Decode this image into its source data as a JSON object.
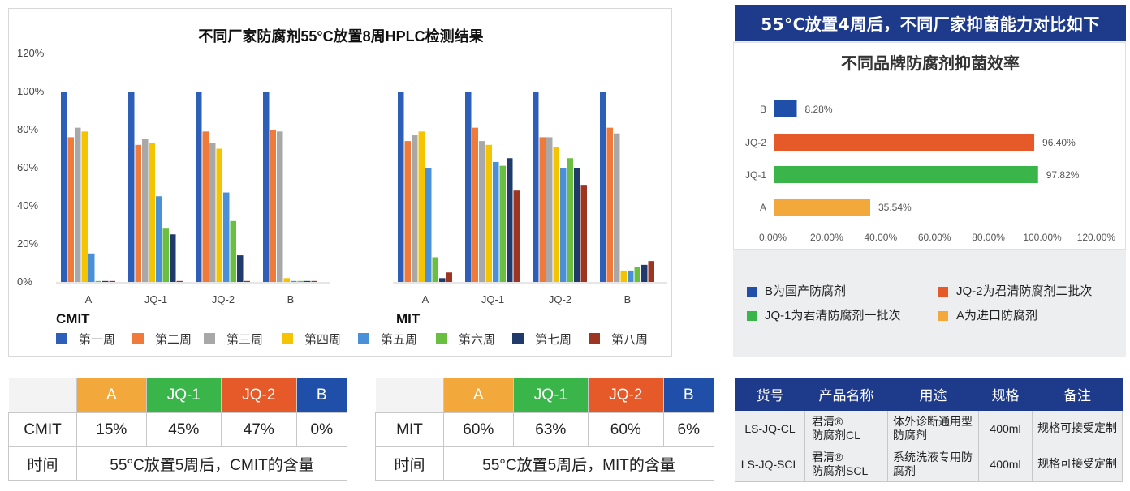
{
  "hplc": {
    "title": "不同厂家防腐剂55°C放置8周HPLC检测结果",
    "y_ticks": [
      "0%",
      "20%",
      "40%",
      "60%",
      "80%",
      "100%",
      "120%"
    ],
    "groups": [
      "A",
      "JQ-1",
      "JQ-2",
      "B"
    ],
    "panel_labels": [
      "CMIT",
      "MIT"
    ],
    "legend": [
      "第一周",
      "第二周",
      "第三周",
      "第四周",
      "第五周",
      "第六周",
      "第七周",
      "第八周"
    ],
    "colors": [
      "#2e5fb8",
      "#f07a3a",
      "#a8a8a8",
      "#f5c400",
      "#4a90d9",
      "#6abf40",
      "#1f3a6b",
      "#9c3522"
    ]
  },
  "anti": {
    "header": "55°C放置4周后，不同厂家抑菌能力对比如下",
    "title": "不同品牌防腐剂抑菌效率",
    "x_ticks": [
      "0.00%",
      "20.00%",
      "40.00%",
      "60.00%",
      "80.00%",
      "100.00%",
      "120.00%"
    ],
    "legend": [
      {
        "text": "B为国产防腐剂",
        "color": "#1f4fa8"
      },
      {
        "text": "JQ-2为君清防腐剂二批次",
        "color": "#e65a2a"
      },
      {
        "text": "JQ-1为君清防腐剂一批次",
        "color": "#3ab54a"
      },
      {
        "text": "A为进口防腐剂",
        "color": "#f2a83a"
      }
    ]
  },
  "chart_data": [
    {
      "type": "bar",
      "title": "不同厂家防腐剂55°C放置8周HPLC检测结果",
      "subplot": "CMIT",
      "categories": [
        "A",
        "JQ-1",
        "JQ-2",
        "B"
      ],
      "ylim": [
        0,
        120
      ],
      "series": [
        {
          "name": "第一周",
          "values": [
            100,
            100,
            100,
            100
          ]
        },
        {
          "name": "第二周",
          "values": [
            76,
            72,
            79,
            80
          ]
        },
        {
          "name": "第三周",
          "values": [
            81,
            75,
            73,
            79
          ]
        },
        {
          "name": "第四周",
          "values": [
            79,
            73,
            70,
            2
          ]
        },
        {
          "name": "第五周",
          "values": [
            15,
            45,
            47,
            0.5
          ]
        },
        {
          "name": "第六周",
          "values": [
            0.5,
            28,
            32,
            0.5
          ]
        },
        {
          "name": "第七周",
          "values": [
            0.5,
            25,
            14,
            0.5
          ]
        },
        {
          "name": "第八周",
          "values": [
            0.5,
            0.5,
            0.5,
            0.5
          ]
        }
      ]
    },
    {
      "type": "bar",
      "subplot": "MIT",
      "categories": [
        "A",
        "JQ-1",
        "JQ-2",
        "B"
      ],
      "ylim": [
        0,
        120
      ],
      "series": [
        {
          "name": "第一周",
          "values": [
            100,
            100,
            100,
            100
          ]
        },
        {
          "name": "第二周",
          "values": [
            74,
            81,
            76,
            81
          ]
        },
        {
          "name": "第三周",
          "values": [
            77,
            74,
            76,
            78
          ]
        },
        {
          "name": "第四周",
          "values": [
            79,
            72,
            71,
            6
          ]
        },
        {
          "name": "第五周",
          "values": [
            60,
            63,
            60,
            6
          ]
        },
        {
          "name": "第六周",
          "values": [
            13,
            61,
            65,
            8
          ]
        },
        {
          "name": "第七周",
          "values": [
            2,
            65,
            60,
            9
          ]
        },
        {
          "name": "第八周",
          "values": [
            5,
            48,
            51,
            11
          ]
        }
      ]
    },
    {
      "type": "bar",
      "orientation": "horizontal",
      "title": "不同品牌防腐剂抑菌效率",
      "categories": [
        "B",
        "JQ-2",
        "JQ-1",
        "A"
      ],
      "values": [
        8.28,
        96.4,
        97.82,
        35.54
      ],
      "value_labels": [
        "8.28%",
        "96.40%",
        "97.82%",
        "35.54%"
      ],
      "colors": [
        "#1f4fa8",
        "#e65a2a",
        "#3ab54a",
        "#f2a83a"
      ],
      "xlim": [
        0,
        120
      ]
    }
  ],
  "cmit_table": {
    "headers": [
      "A",
      "JQ-1",
      "JQ-2",
      "B"
    ],
    "row_label": "CMIT",
    "values": [
      "15%",
      "45%",
      "47%",
      "0%"
    ],
    "time_label": "时间",
    "time_text": "55°C放置5周后，CMIT的含量"
  },
  "mit_table": {
    "headers": [
      "A",
      "JQ-1",
      "JQ-2",
      "B"
    ],
    "row_label": "MIT",
    "values": [
      "60%",
      "63%",
      "60%",
      "6%"
    ],
    "time_label": "时间",
    "time_text": "55°C放置5周后，MIT的含量"
  },
  "product_table": {
    "headers": [
      "货号",
      "产品名称",
      "用途",
      "规格",
      "备注"
    ],
    "rows": [
      {
        "code": "LS-JQ-CL",
        "name1": "君清®",
        "name2": "防腐剂CL",
        "use": "体外诊断通用型防腐剂",
        "spec": "400ml",
        "note": "规格可接受定制"
      },
      {
        "code": "LS-JQ-SCL",
        "name1": "君清®",
        "name2": "防腐剂SCL",
        "use": "系统洗液专用防腐剂",
        "spec": "400ml",
        "note": "规格可接受定制"
      }
    ]
  }
}
